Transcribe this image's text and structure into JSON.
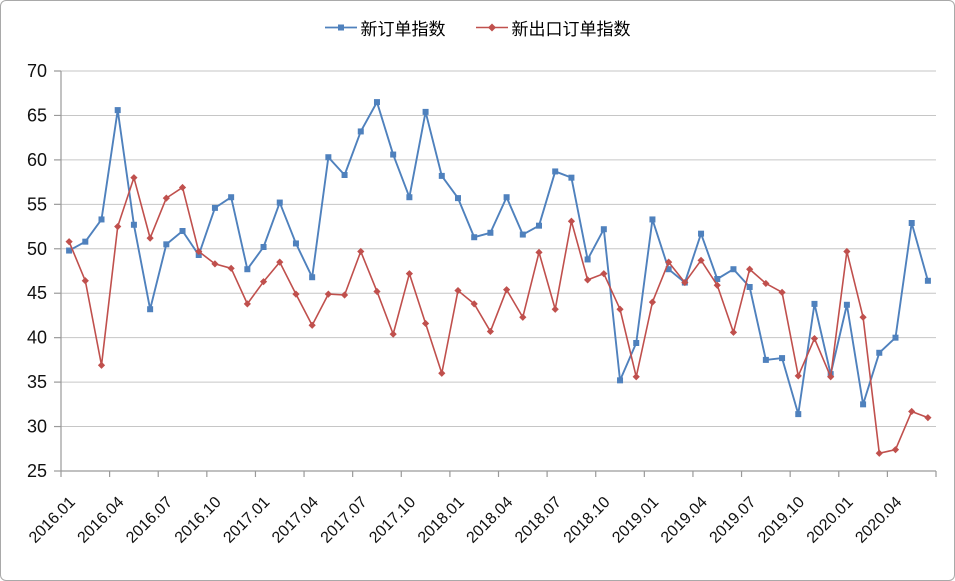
{
  "chart": {
    "legend_items": [
      {
        "label": "新订单指数"
      },
      {
        "label": "新出口订单指数"
      }
    ]
  },
  "chart_data": {
    "type": "line",
    "x": [
      "2016.01",
      "2016.02",
      "2016.03",
      "2016.04",
      "2016.05",
      "2016.06",
      "2016.07",
      "2016.08",
      "2016.09",
      "2016.10",
      "2016.11",
      "2016.12",
      "2017.01",
      "2017.02",
      "2017.03",
      "2017.04",
      "2017.05",
      "2017.06",
      "2017.07",
      "2017.08",
      "2017.09",
      "2017.10",
      "2017.11",
      "2017.12",
      "2018.01",
      "2018.02",
      "2018.03",
      "2018.04",
      "2018.05",
      "2018.06",
      "2018.07",
      "2018.08",
      "2018.09",
      "2018.10",
      "2018.11",
      "2018.12",
      "2019.01",
      "2019.02",
      "2019.03",
      "2019.04",
      "2019.05",
      "2019.06",
      "2019.07",
      "2019.08",
      "2019.09",
      "2019.10",
      "2019.11",
      "2019.12",
      "2020.01",
      "2020.02",
      "2020.03",
      "2020.04",
      "2020.05",
      "2020.06"
    ],
    "x_tick_labels": [
      "2016.01",
      "2016.04",
      "2016.07",
      "2016.10",
      "2017.01",
      "2017.04",
      "2017.07",
      "2017.10",
      "2018.01",
      "2018.04",
      "2018.07",
      "2018.10",
      "2019.01",
      "2019.04",
      "2019.07",
      "2019.10",
      "2020.01",
      "2020.04"
    ],
    "x_label_every": 3,
    "y_ticks": [
      25,
      30,
      35,
      40,
      45,
      50,
      55,
      60,
      65,
      70
    ],
    "ylim": [
      25,
      70
    ],
    "grid": "horizontal",
    "legend_position": "top-center",
    "series": [
      {
        "name": "新订单指数",
        "color": "#4F81BD",
        "marker": "square",
        "values": [
          49.8,
          50.8,
          53.3,
          65.6,
          52.7,
          43.2,
          50.5,
          52.0,
          49.3,
          54.6,
          55.8,
          47.7,
          50.2,
          55.2,
          50.6,
          46.8,
          60.3,
          58.3,
          63.2,
          66.5,
          60.6,
          55.8,
          65.4,
          58.2,
          55.7,
          51.3,
          51.8,
          55.8,
          51.6,
          52.6,
          58.7,
          58.0,
          48.8,
          52.2,
          35.2,
          39.4,
          53.3,
          47.7,
          46.2,
          51.7,
          46.6,
          47.7,
          45.7,
          37.5,
          37.7,
          31.4,
          43.8,
          35.9,
          43.7,
          32.5,
          38.3,
          40.0,
          52.9,
          46.4
        ]
      },
      {
        "name": "新出口订单指数",
        "color": "#C0504D",
        "marker": "diamond",
        "values": [
          50.8,
          46.4,
          36.9,
          52.5,
          58.0,
          51.2,
          55.7,
          56.9,
          49.7,
          48.3,
          47.8,
          43.8,
          46.3,
          48.5,
          44.9,
          41.4,
          44.9,
          44.8,
          49.7,
          45.2,
          40.4,
          47.2,
          41.6,
          36.0,
          45.3,
          43.8,
          40.7,
          45.4,
          42.3,
          49.6,
          43.2,
          53.1,
          46.5,
          47.2,
          43.2,
          35.6,
          44.0,
          48.5,
          46.2,
          48.7,
          45.9,
          40.6,
          47.7,
          46.1,
          45.1,
          35.7,
          39.9,
          35.6,
          49.7,
          42.3,
          27.0,
          27.4,
          31.7,
          31.0
        ]
      }
    ]
  }
}
